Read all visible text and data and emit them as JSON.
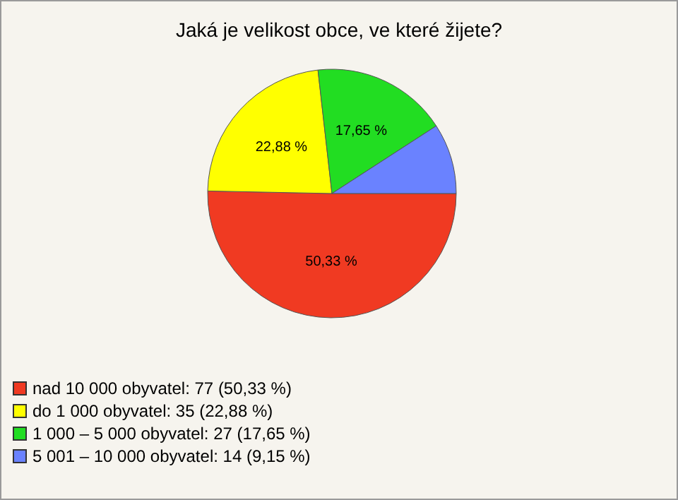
{
  "chart_data": {
    "type": "pie",
    "title": "Jaká je velikost obce, ve které žijete?",
    "categories": [
      "nad 10 000 obyvatel: 77 (50,33 %)",
      "do 1 000 obyvatel: 35 (22,88 %)",
      "1 000 – 5 000 obyvatel: 27 (17,65 %)",
      "5 001 – 10 000 obyvatel: 14 (9,15 %)"
    ],
    "values": [
      50.33,
      22.88,
      17.65,
      9.15
    ],
    "colors": [
      "#f03a22",
      "#ffff00",
      "#22dd22",
      "#6a82ff"
    ],
    "value_labels": [
      "50,33 %",
      "22,88 %",
      "17,65 %",
      null
    ],
    "legend": "bottom left"
  }
}
